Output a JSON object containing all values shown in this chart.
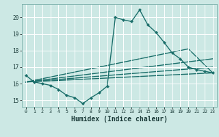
{
  "xlabel": "Humidex (Indice chaleur)",
  "bg_color": "#cce8e4",
  "line_color": "#1a6e6a",
  "grid_color": "#b8ddd8",
  "xlim": [
    -0.5,
    23.5
  ],
  "ylim": [
    14.6,
    20.8
  ],
  "xticks": [
    0,
    1,
    2,
    3,
    4,
    5,
    6,
    7,
    8,
    9,
    10,
    11,
    12,
    13,
    14,
    15,
    16,
    17,
    18,
    19,
    20,
    21,
    22,
    23
  ],
  "yticks": [
    15,
    16,
    17,
    18,
    19,
    20
  ],
  "main_x": [
    0,
    1,
    2,
    3,
    4,
    5,
    6,
    7,
    8,
    9,
    10,
    11,
    12,
    13,
    14,
    15,
    16,
    17,
    18,
    19,
    20,
    21,
    22,
    23
  ],
  "main_y": [
    16.5,
    16.1,
    16.0,
    15.9,
    15.65,
    15.3,
    15.15,
    14.8,
    15.15,
    15.45,
    15.85,
    20.0,
    19.85,
    19.75,
    20.45,
    19.55,
    19.1,
    18.5,
    17.85,
    17.5,
    17.0,
    16.85,
    16.75,
    16.65
  ],
  "line2_x": [
    0,
    23
  ],
  "line2_y": [
    16.1,
    16.65
  ],
  "line3_x": [
    0,
    23
  ],
  "line3_y": [
    16.1,
    17.0
  ],
  "line4_x": [
    0,
    23
  ],
  "line4_y": [
    16.1,
    17.5
  ],
  "line5_x": [
    0,
    20,
    23
  ],
  "line5_y": [
    16.1,
    18.1,
    16.65
  ]
}
